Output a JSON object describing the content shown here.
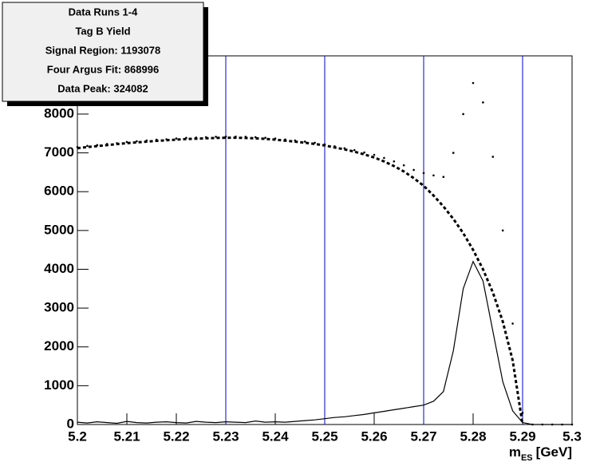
{
  "chart_data": {
    "type": "line",
    "legend_box": [
      "Data Runs 1-4",
      "Tag B Yield",
      "Signal Region: 1193078",
      "Four Argus Fit: 868996",
      "Data Peak: 324082"
    ],
    "x_label": {
      "main": "m",
      "sub": "ES",
      "unit": "[GeV]"
    },
    "x": [
      5.2,
      5.202,
      5.204,
      5.206,
      5.208,
      5.21,
      5.212,
      5.214,
      5.216,
      5.218,
      5.22,
      5.222,
      5.224,
      5.226,
      5.228,
      5.23,
      5.232,
      5.234,
      5.236,
      5.238,
      5.24,
      5.242,
      5.244,
      5.246,
      5.248,
      5.25,
      5.252,
      5.254,
      5.256,
      5.258,
      5.26,
      5.262,
      5.264,
      5.266,
      5.268,
      5.27,
      5.272,
      5.274,
      5.276,
      5.278,
      5.28,
      5.282,
      5.284,
      5.286,
      5.288,
      5.29,
      5.292,
      5.294,
      5.296,
      5.298,
      5.3
    ],
    "series": [
      {
        "style": "dots",
        "color": "#000000",
        "values": [
          7150,
          7180,
          7200,
          7230,
          7250,
          7280,
          7300,
          7320,
          7340,
          7350,
          7370,
          7385,
          7395,
          7405,
          7415,
          7420,
          7420,
          7415,
          7405,
          7390,
          7370,
          7345,
          7320,
          7290,
          7260,
          7220,
          7170,
          7120,
          7070,
          7010,
          6950,
          6870,
          6780,
          6680,
          6560,
          6480,
          6420,
          6380,
          7000,
          8000,
          8800,
          8300,
          6900,
          5000,
          2600,
          300,
          0,
          0,
          0,
          0,
          0
        ]
      },
      {
        "style": "dashed",
        "color": "#000000",
        "values": [
          7120,
          7150,
          7175,
          7200,
          7225,
          7250,
          7270,
          7290,
          7310,
          7325,
          7340,
          7355,
          7365,
          7375,
          7385,
          7390,
          7390,
          7385,
          7375,
          7360,
          7340,
          7315,
          7290,
          7260,
          7230,
          7190,
          7140,
          7090,
          7030,
          6960,
          6880,
          6780,
          6660,
          6520,
          6350,
          6150,
          5900,
          5620,
          5300,
          4930,
          4500,
          4000,
          3400,
          2650,
          1650,
          0,
          null,
          null,
          null,
          null,
          null
        ]
      },
      {
        "style": "solid",
        "color": "#000000",
        "values": [
          60,
          40,
          70,
          50,
          30,
          80,
          50,
          40,
          60,
          70,
          50,
          40,
          80,
          60,
          50,
          70,
          60,
          50,
          90,
          60,
          70,
          60,
          80,
          100,
          120,
          150,
          180,
          200,
          230,
          260,
          300,
          340,
          380,
          420,
          460,
          500,
          600,
          850,
          1900,
          3500,
          4200,
          3700,
          2400,
          1100,
          350,
          50,
          0,
          0,
          0,
          0,
          0
        ]
      }
    ],
    "vlines": [
      5.23,
      5.25,
      5.27,
      5.29
    ],
    "vline_color": "#0000cc",
    "xlim": [
      5.2,
      5.3
    ],
    "ylim": [
      0,
      9500
    ],
    "xticks": [
      5.2,
      5.21,
      5.22,
      5.23,
      5.24,
      5.25,
      5.26,
      5.27,
      5.28,
      5.29,
      5.3
    ],
    "yticks": [
      0,
      1000,
      2000,
      3000,
      4000,
      5000,
      6000,
      7000,
      8000
    ]
  }
}
